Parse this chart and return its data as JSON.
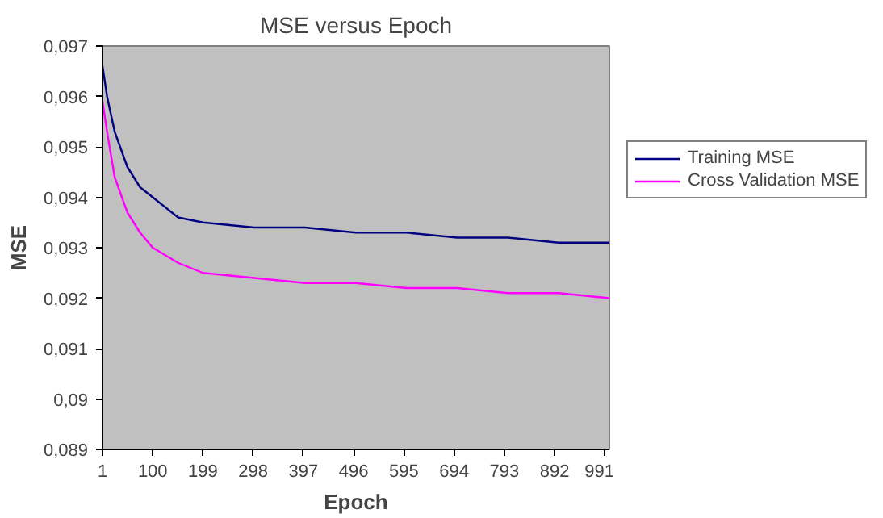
{
  "chart_data": {
    "type": "line",
    "title": "MSE versus Epoch",
    "xlabel": "Epoch",
    "ylabel": "MSE",
    "x": [
      1,
      10,
      25,
      50,
      75,
      100,
      150,
      199,
      300,
      400,
      500,
      600,
      700,
      800,
      900,
      1000
    ],
    "series": [
      {
        "name": "Training MSE",
        "color": "#000080",
        "values": [
          0.0966,
          0.096,
          0.0953,
          0.0946,
          0.0942,
          0.094,
          0.0936,
          0.0935,
          0.0934,
          0.0934,
          0.0933,
          0.0933,
          0.0932,
          0.0932,
          0.0931,
          0.0931
        ]
      },
      {
        "name": "Cross Validation MSE",
        "color": "#ff00ff",
        "values": [
          0.0959,
          0.0953,
          0.0944,
          0.0937,
          0.0933,
          0.093,
          0.0927,
          0.0925,
          0.0924,
          0.0923,
          0.0923,
          0.0922,
          0.0922,
          0.0921,
          0.0921,
          0.092
        ]
      }
    ],
    "xlim": [
      1,
      1000
    ],
    "xticks": [
      1,
      100,
      199,
      298,
      397,
      496,
      595,
      694,
      793,
      892,
      991
    ],
    "ylim": [
      0.089,
      0.097
    ],
    "yticks": [
      {
        "value": 0.089,
        "label": "0,089"
      },
      {
        "value": 0.09,
        "label": "0,09"
      },
      {
        "value": 0.091,
        "label": "0,091"
      },
      {
        "value": 0.092,
        "label": "0,092"
      },
      {
        "value": 0.093,
        "label": "0,093"
      },
      {
        "value": 0.094,
        "label": "0,094"
      },
      {
        "value": 0.095,
        "label": "0,095"
      },
      {
        "value": 0.096,
        "label": "0,096"
      },
      {
        "value": 0.097,
        "label": "0,097"
      }
    ],
    "grid": false,
    "legend": "right",
    "marker": "none",
    "line_style": "solid"
  }
}
